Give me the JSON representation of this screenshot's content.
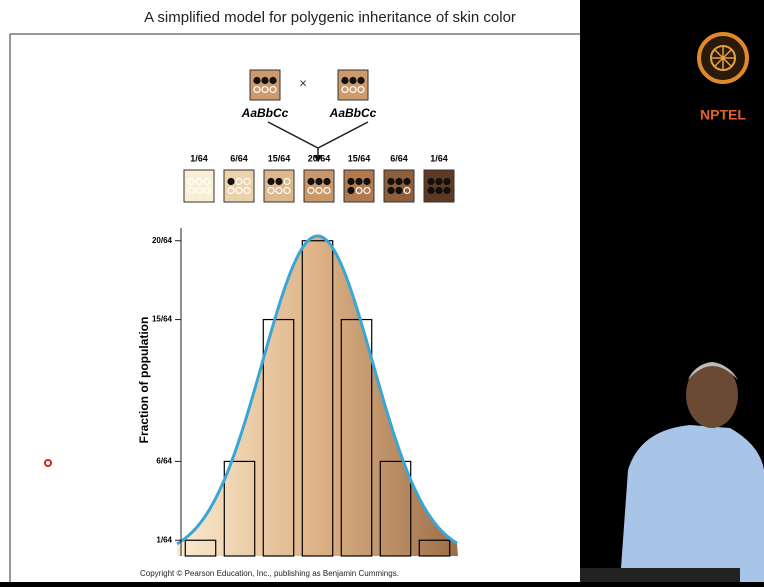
{
  "slide": {
    "title": "A simplified model for polygenic inheritance of skin color",
    "parents": [
      "AaBbCc",
      "AaBbCc"
    ],
    "cross": "×",
    "offspring_fractions": [
      "1/64",
      "6/64",
      "15/64",
      "20/64",
      "15/64",
      "6/64",
      "1/64"
    ],
    "copyright": "Copyright © Pearson Education, Inc., publishing as Benjamin Cummings."
  },
  "logo": {
    "text": "NPTEL"
  },
  "chart_data": {
    "type": "bar",
    "ylabel": "Fraction of population",
    "categories": [
      null,
      null,
      null,
      null,
      null,
      null,
      null
    ],
    "values": [
      0.015625,
      0.09375,
      0.234375,
      0.3125,
      0.234375,
      0.09375,
      0.015625
    ],
    "color": "#000000",
    "curve_color": "#3aa6d6",
    "ylim": [
      0,
      0.34
    ],
    "yticks": [
      {
        "value": 0.015625,
        "label": "1/64"
      },
      {
        "value": 0.09375,
        "label": "6/64"
      },
      {
        "value": 0.234375,
        "label": "15/64"
      },
      {
        "value": 0.3125,
        "label": "20/64"
      }
    ]
  }
}
